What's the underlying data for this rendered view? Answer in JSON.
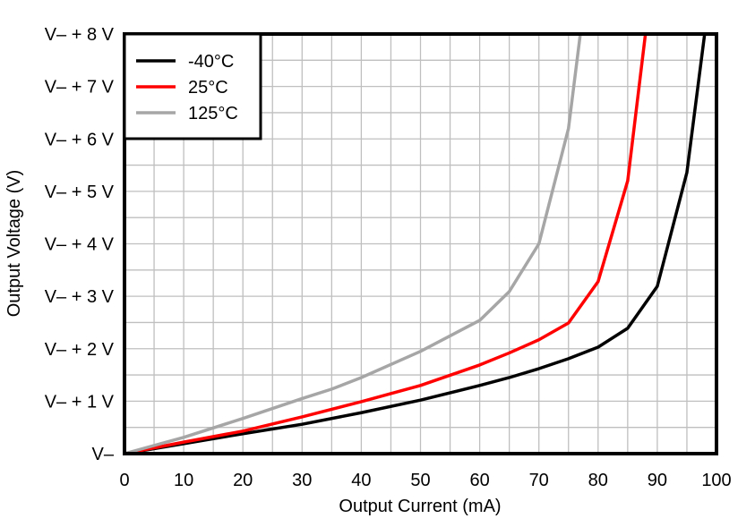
{
  "chart_data": {
    "type": "line",
    "xlabel": "Output Current (mA)",
    "ylabel": "Output Voltage (V)",
    "xlim": [
      0,
      100
    ],
    "ylim": [
      0,
      8
    ],
    "x_ticks": [
      0,
      10,
      20,
      30,
      40,
      50,
      60,
      70,
      80,
      90,
      100
    ],
    "x_tick_labels": [
      "0",
      "10",
      "20",
      "30",
      "40",
      "50",
      "60",
      "70",
      "80",
      "90",
      "100"
    ],
    "y_ticks": [
      0,
      1,
      2,
      3,
      4,
      5,
      6,
      7,
      8
    ],
    "y_tick_labels": [
      "V–",
      "V– + 1 V",
      "V– + 2 V",
      "V– + 3 V",
      "V– + 4 V",
      "V– + 5 V",
      "V– + 6 V",
      "V– + 7 V",
      "V– + 8 V"
    ],
    "grid": true,
    "grid_minor_x": 5,
    "grid_minor_y": 0.5,
    "legend_position": "top-left",
    "series": [
      {
        "name": "-40°C",
        "color": "#000000",
        "x": [
          0,
          10,
          20,
          30,
          40,
          50,
          60,
          65,
          70,
          75,
          80,
          85,
          90,
          95,
          98
        ],
        "y": [
          0,
          0.19,
          0.38,
          0.56,
          0.78,
          1.02,
          1.3,
          1.45,
          1.62,
          1.81,
          2.03,
          2.39,
          3.19,
          5.36,
          8
        ]
      },
      {
        "name": "25°C",
        "color": "#ff0000",
        "x": [
          0,
          10,
          20,
          30,
          40,
          50,
          60,
          65,
          70,
          75,
          80,
          85,
          88
        ],
        "y": [
          0,
          0.22,
          0.43,
          0.7,
          0.99,
          1.3,
          1.69,
          1.92,
          2.17,
          2.49,
          3.28,
          5.2,
          8
        ]
      },
      {
        "name": "125°C",
        "color": "#a6a6a6",
        "x": [
          0,
          10,
          20,
          30,
          35,
          40,
          50,
          60,
          65,
          70,
          75,
          77
        ],
        "y": [
          0,
          0.31,
          0.67,
          1.05,
          1.23,
          1.45,
          1.95,
          2.54,
          3.09,
          4.0,
          6.2,
          8
        ]
      }
    ]
  }
}
